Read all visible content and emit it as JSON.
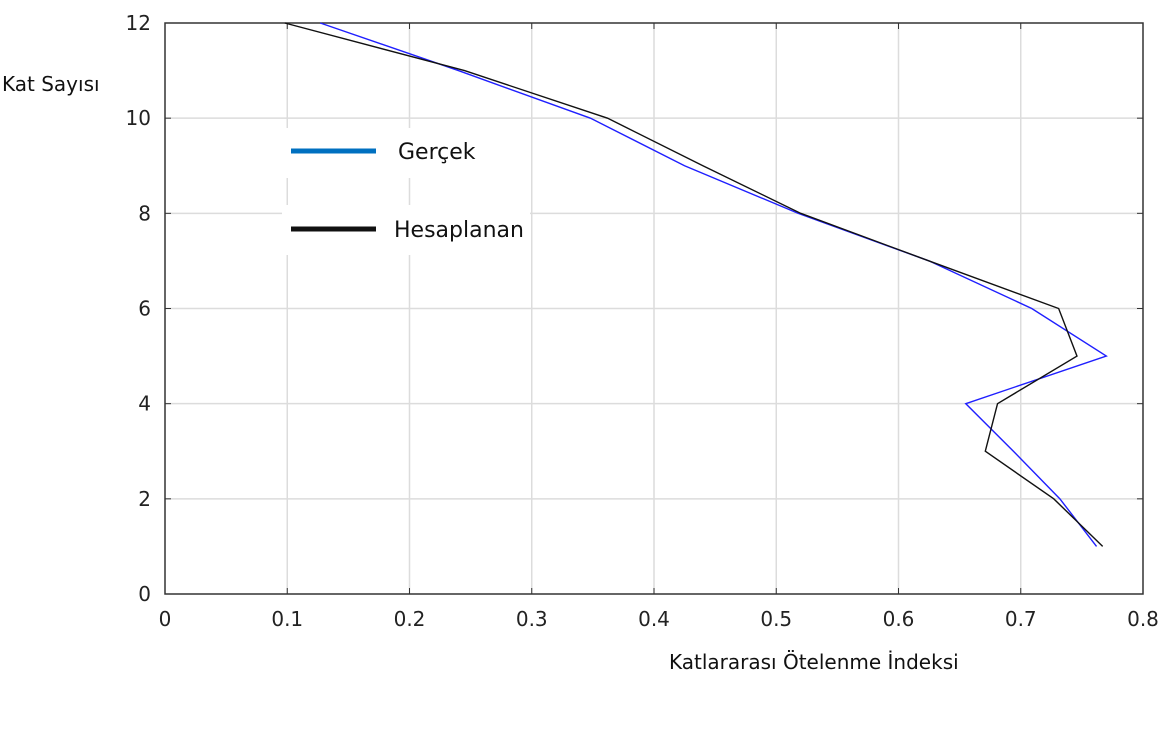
{
  "chart_data": {
    "type": "line",
    "title": "",
    "xlabel": "Katlararası Ötelenme İndeksi",
    "ylabel": "Kat Sayısı",
    "xlim": [
      0,
      0.8
    ],
    "ylim": [
      0,
      12
    ],
    "xticks": [
      "0",
      "0.1",
      "0.2",
      "0.3",
      "0.4",
      "0.5",
      "0.6",
      "0.7",
      "0.8"
    ],
    "yticks": [
      "0",
      "2",
      "4",
      "6",
      "8",
      "10",
      "12"
    ],
    "grid": true,
    "legend_position": "upper-left",
    "series": [
      {
        "name": "Gerçek",
        "color": "#1f1fff",
        "legend_color": "#0070c0",
        "y": [
          1,
          2,
          3,
          4,
          5,
          6,
          7,
          8,
          9,
          10,
          11,
          12
        ],
        "x": [
          0.762,
          0.732,
          0.694,
          0.655,
          0.77,
          0.709,
          0.625,
          0.518,
          0.425,
          0.348,
          0.24,
          0.127
        ]
      },
      {
        "name": "Hesaplanan",
        "color": "#111111",
        "legend_color": "#111111",
        "y": [
          1,
          2,
          3,
          4,
          5,
          6,
          7,
          8,
          9,
          10,
          11,
          12
        ],
        "x": [
          0.767,
          0.727,
          0.671,
          0.681,
          0.746,
          0.731,
          0.625,
          0.52,
          0.44,
          0.362,
          0.245,
          0.098
        ]
      }
    ]
  }
}
